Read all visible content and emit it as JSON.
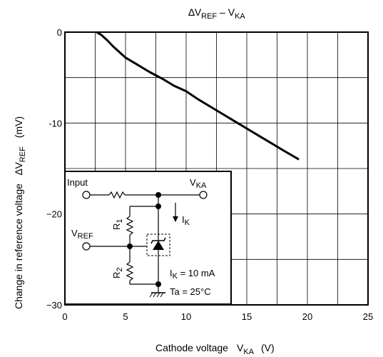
{
  "chart_data": {
    "type": "line",
    "title": {
      "delta": "∆",
      "v1": "V",
      "v1_sub": "REF",
      "dash": " – ",
      "v2": "V",
      "v2_sub": "KA"
    },
    "xlabel": {
      "text": "Cathode voltage",
      "sym": "V",
      "sym_sub": "KA",
      "unit": "(V)"
    },
    "ylabel": {
      "text": "Change in reference voltage",
      "sym": "∆V",
      "sym_sub": "REF",
      "unit": "(mV)"
    },
    "xlim": [
      0,
      25
    ],
    "ylim": [
      -30,
      0
    ],
    "x_ticks": [
      0,
      5,
      10,
      15,
      20,
      25
    ],
    "y_ticks": [
      0,
      -10,
      -20,
      -30
    ],
    "x_tick_labels": [
      "0",
      "5",
      "10",
      "15",
      "20",
      "25"
    ],
    "y_tick_labels": [
      "0",
      "-10",
      "−20",
      "−30"
    ],
    "grid": true,
    "series": [
      {
        "x": [
          2.6,
          3.0,
          3.5,
          4.0,
          5.0,
          6.0,
          7.0,
          8.0,
          9.0,
          10.0,
          11.0,
          12.0,
          13.0,
          14.0,
          15.0,
          16.0,
          17.0,
          18.0,
          19.3
        ],
        "y": [
          0,
          -0.3,
          -0.9,
          -1.6,
          -2.8,
          -3.6,
          -4.4,
          -5.1,
          -5.9,
          -6.5,
          -7.4,
          -8.2,
          -9.0,
          -9.8,
          -10.6,
          -11.4,
          -12.2,
          -13.0,
          -14.0
        ]
      }
    ]
  },
  "inset": {
    "input_label": "Input",
    "vka": {
      "main": "V",
      "sub": "KA"
    },
    "ik": {
      "main": "I",
      "sub": "K"
    },
    "r1": {
      "main": "R",
      "sub": "1"
    },
    "r2": {
      "main": "R",
      "sub": "2"
    },
    "vref": {
      "main": "V",
      "sub": "REF"
    },
    "cond_ik": {
      "main": "I",
      "sub": "K",
      "rest": " = 10 mA"
    },
    "cond_ta": "Ta = 25°C"
  }
}
